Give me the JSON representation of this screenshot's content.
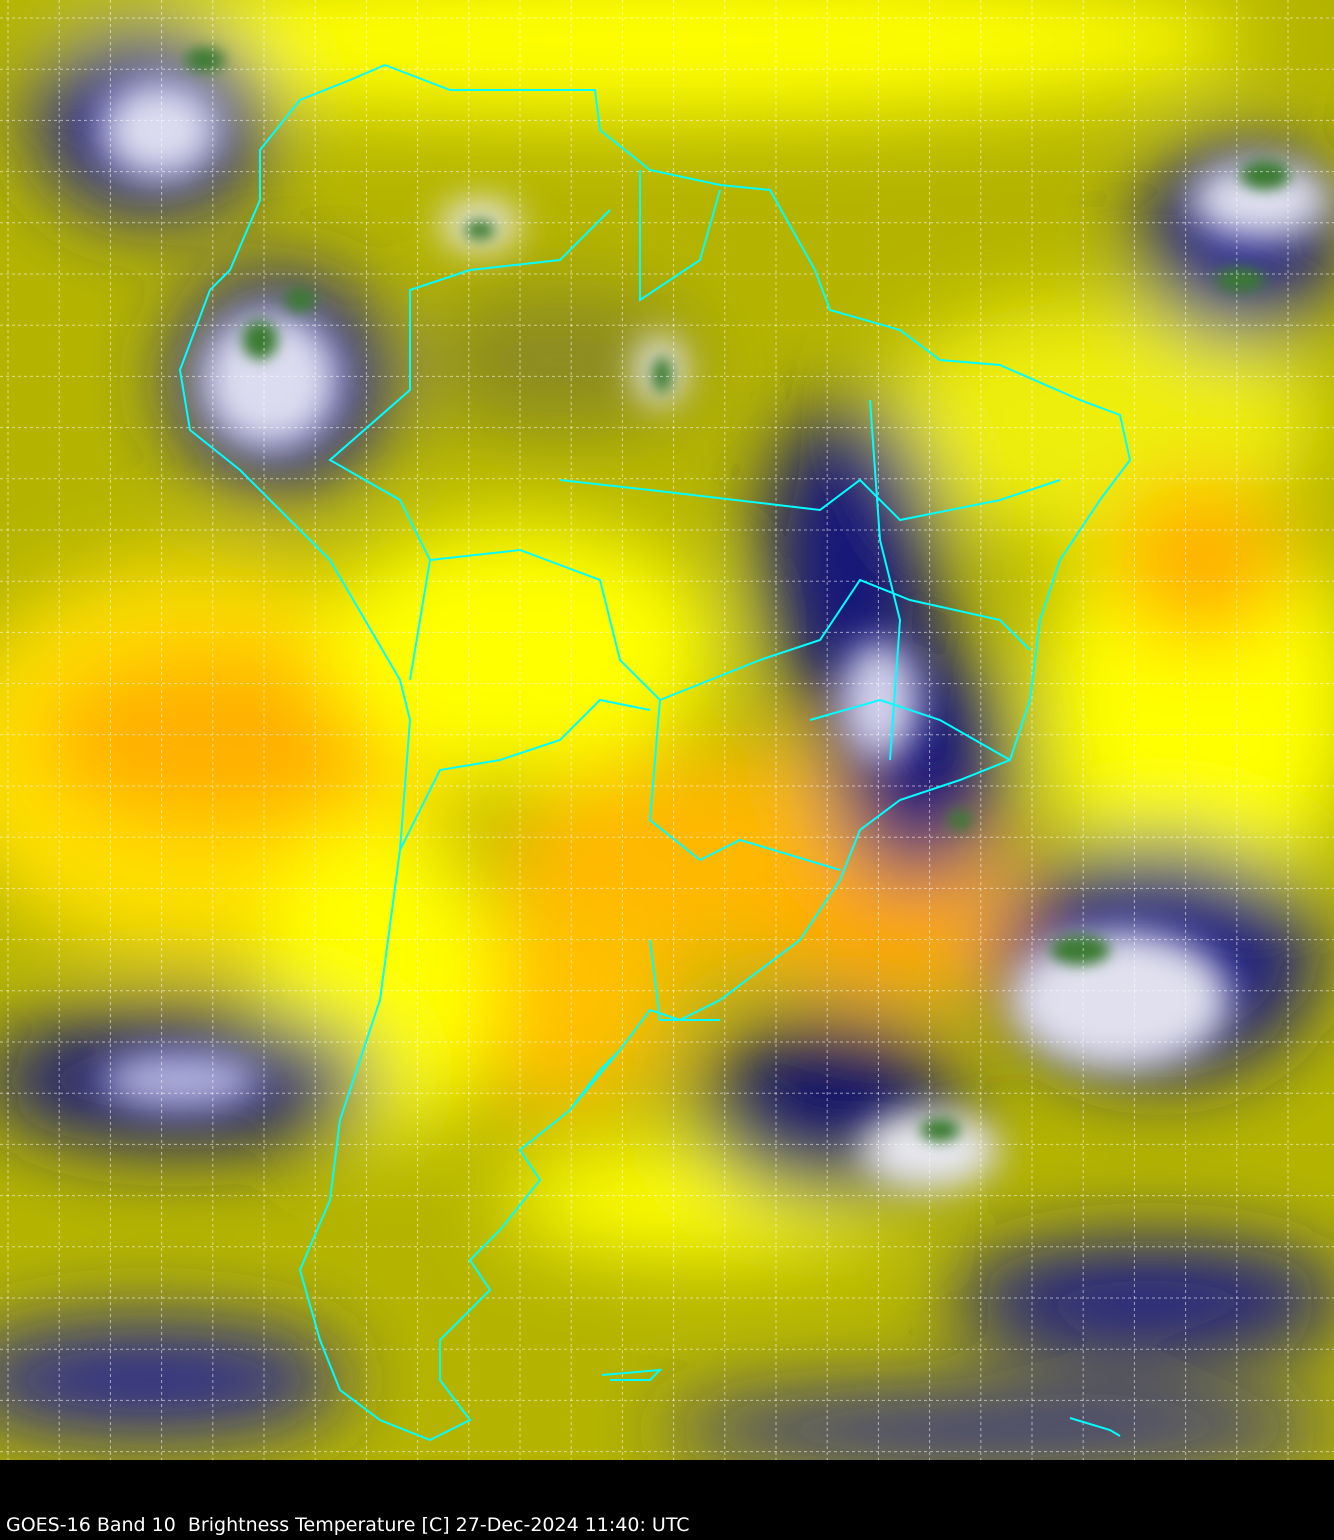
{
  "caption": "GOES-16 Band 10  Brightness Temperature [C] 27-Dec-2024 11:40: UTC",
  "colors": {
    "border": "#00ffff",
    "grid": "#ffffff",
    "yellow": "#ffff00",
    "orange": "#ffb000",
    "olive": "#b8b800",
    "navy": "#12127a",
    "cloud_white": "#e8e8f0",
    "cloud_green": "#3a7a30",
    "background": "#000000"
  }
}
